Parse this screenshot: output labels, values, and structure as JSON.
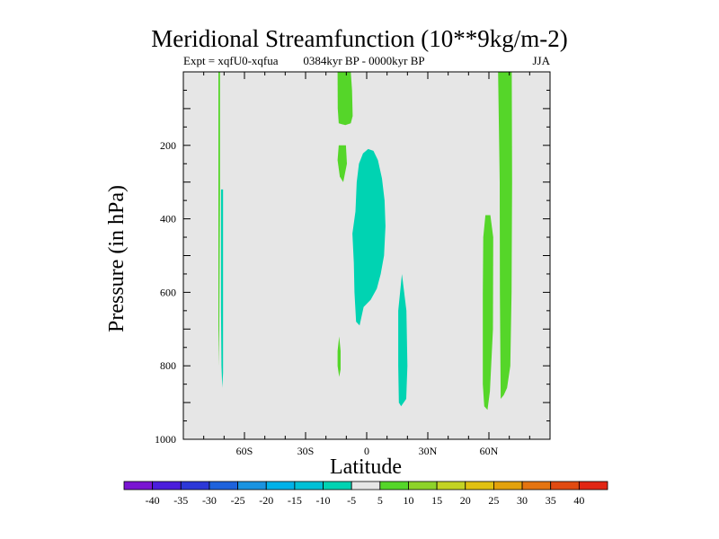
{
  "chart_data": {
    "type": "contour",
    "title": "Meridional Streamfunction (10**9kg/m-2)",
    "left_string": "Expt = xqfU0-xqfua",
    "center_string": "0384kyr BP - 0000kyr BP",
    "right_string": "JJA",
    "xlabel": "Latitude",
    "ylabel": "Pressure (in hPa)",
    "xlim": [
      -90,
      90
    ],
    "ylim": [
      1000,
      0
    ],
    "x_ticks": [
      {
        "value": -60,
        "label": "60S"
      },
      {
        "value": -30,
        "label": "30S"
      },
      {
        "value": 0,
        "label": "0"
      },
      {
        "value": 30,
        "label": "30N"
      },
      {
        "value": 60,
        "label": "60N"
      }
    ],
    "y_ticks": [
      {
        "value": 200,
        "label": "200"
      },
      {
        "value": 400,
        "label": "400"
      },
      {
        "value": 600,
        "label": "600"
      },
      {
        "value": 800,
        "label": "800"
      },
      {
        "value": 1000,
        "label": "1000"
      }
    ],
    "background_color": "#e6e6e6",
    "features": [
      {
        "name": "positive-anomaly",
        "value": 5,
        "color": "#55d629",
        "outline": [
          [
            -72.8,
            0
          ],
          [
            -72,
            0
          ],
          [
            -72,
            320
          ],
          [
            -72.2,
            550
          ],
          [
            -72.5,
            800
          ],
          [
            -72.8,
            700
          ],
          [
            -72.8,
            300
          ]
        ]
      },
      {
        "name": "negative-anomaly",
        "value": -5,
        "color": "#00d3b2",
        "outline": [
          [
            -71.5,
            320
          ],
          [
            -70.5,
            320
          ],
          [
            -70.5,
            600
          ],
          [
            -70.5,
            820
          ],
          [
            -70.9,
            860
          ],
          [
            -71.3,
            800
          ],
          [
            -71.5,
            650
          ]
        ]
      },
      {
        "name": "positive-anomaly",
        "value": 5,
        "color": "#55d629",
        "outline": [
          [
            -14.3,
            0
          ],
          [
            -7.8,
            0
          ],
          [
            -7.2,
            50
          ],
          [
            -6.9,
            120
          ],
          [
            -7.8,
            140
          ],
          [
            -10.5,
            145
          ],
          [
            -13.7,
            140
          ],
          [
            -14.2,
            100
          ]
        ]
      },
      {
        "name": "positive-anomaly",
        "value": 5,
        "color": "#55d629",
        "outline": [
          [
            -13.7,
            200
          ],
          [
            -10.2,
            200
          ],
          [
            -9.7,
            250
          ],
          [
            -11.5,
            300
          ],
          [
            -13.2,
            285
          ],
          [
            -14.3,
            240
          ]
        ]
      },
      {
        "name": "negative-anomaly",
        "value": -5,
        "color": "#00d3b2",
        "outline": [
          [
            -7,
            440
          ],
          [
            -5.5,
            380
          ],
          [
            -4.9,
            300
          ],
          [
            -3.8,
            250
          ],
          [
            -1.8,
            222
          ],
          [
            0.7,
            210
          ],
          [
            3.3,
            215
          ],
          [
            5.5,
            240
          ],
          [
            7.5,
            290
          ],
          [
            8.8,
            350
          ],
          [
            9.2,
            420
          ],
          [
            8.5,
            500
          ],
          [
            6.9,
            550
          ],
          [
            5,
            590
          ],
          [
            2,
            620
          ],
          [
            -1.5,
            640
          ],
          [
            -3.5,
            690
          ],
          [
            -5.2,
            680
          ],
          [
            -6,
            600
          ],
          [
            -6.3,
            520
          ]
        ]
      },
      {
        "name": "positive-anomaly",
        "value": 5,
        "color": "#55d629",
        "outline": [
          [
            -13.5,
            720
          ],
          [
            -12.8,
            760
          ],
          [
            -12.8,
            810
          ],
          [
            -13.5,
            830
          ],
          [
            -14.3,
            800
          ],
          [
            -14.3,
            760
          ]
        ]
      },
      {
        "name": "negative-anomaly",
        "value": -5,
        "color": "#00d3b2",
        "outline": [
          [
            17.3,
            550
          ],
          [
            15.5,
            650
          ],
          [
            15.5,
            800
          ],
          [
            15.8,
            900
          ],
          [
            16.9,
            910
          ],
          [
            19.4,
            890
          ],
          [
            20,
            800
          ],
          [
            19.5,
            650
          ]
        ]
      },
      {
        "name": "positive-anomaly",
        "value": 5,
        "color": "#55d629",
        "outline": [
          [
            60.7,
            390
          ],
          [
            58.3,
            390
          ],
          [
            57.2,
            450
          ],
          [
            57,
            600
          ],
          [
            57,
            850
          ],
          [
            57.7,
            910
          ],
          [
            59.3,
            920
          ],
          [
            60.5,
            870
          ],
          [
            62,
            700
          ],
          [
            62.1,
            450
          ]
        ]
      },
      {
        "name": "positive-anomaly",
        "value": 5,
        "color": "#55d629",
        "outline": [
          [
            64.5,
            0
          ],
          [
            71.2,
            0
          ],
          [
            71.4,
            300
          ],
          [
            71.1,
            600
          ],
          [
            70.5,
            800
          ],
          [
            68.9,
            860
          ],
          [
            67.3,
            880
          ],
          [
            65.8,
            890
          ],
          [
            65.4,
            600
          ],
          [
            65.3,
            300
          ]
        ]
      }
    ],
    "colorbar": {
      "labels": [
        "-40",
        "-35",
        "-30",
        "-25",
        "-20",
        "-15",
        "-10",
        "-5",
        "5",
        "10",
        "15",
        "20",
        "25",
        "30",
        "35",
        "40"
      ],
      "colors": [
        "#7a14d2",
        "#4b1ddc",
        "#2c38d8",
        "#1e62dc",
        "#1a93e0",
        "#00b1e8",
        "#00c0d6",
        "#00d3b2",
        "#e6e6e6",
        "#55d629",
        "#8dd329",
        "#c3d323",
        "#e0c111",
        "#e3a20c",
        "#e47410",
        "#e14a11",
        "#e22614"
      ]
    }
  }
}
